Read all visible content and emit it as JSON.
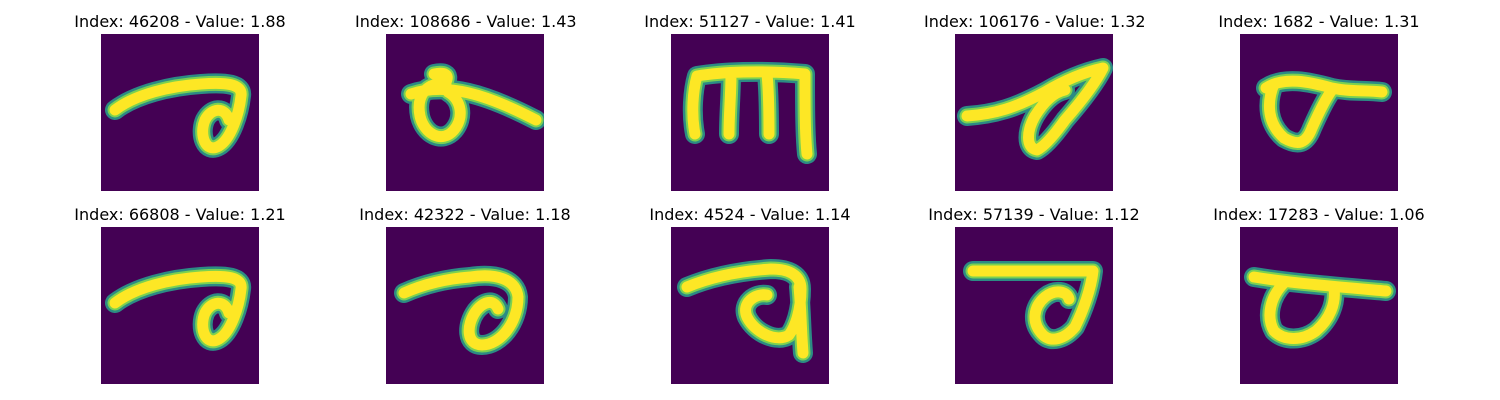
{
  "colors": {
    "background": "#440154",
    "stroke_outer": "#2a9a8a",
    "stroke_mid": "#7ad151",
    "stroke_core": "#fde725"
  },
  "chart_data": {
    "type": "image-grid",
    "panels": [
      {
        "title": "Index: 46208 - Value: 1.88",
        "index": 46208,
        "value": 1.88,
        "glyph": "curl-loop-right"
      },
      {
        "title": "Index: 108686 - Value: 1.43",
        "index": 108686,
        "value": 1.43,
        "glyph": "small-loop-stroke"
      },
      {
        "title": "Index: 51127 - Value: 1.41",
        "index": 51127,
        "value": 1.41,
        "glyph": "m-shape"
      },
      {
        "title": "Index: 106176 - Value: 1.32",
        "index": 106176,
        "value": 1.32,
        "glyph": "leaf-loop"
      },
      {
        "title": "Index: 1682 - Value: 1.31",
        "index": 1682,
        "value": 1.31,
        "glyph": "cup-loop"
      },
      {
        "title": "Index: 66808 - Value: 1.21",
        "index": 66808,
        "value": 1.21,
        "glyph": "curl-loop-right"
      },
      {
        "title": "Index: 42322 - Value: 1.18",
        "index": 42322,
        "value": 1.18,
        "glyph": "bold-loop"
      },
      {
        "title": "Index: 4524 - Value: 1.14",
        "index": 4524,
        "value": 1.14,
        "glyph": "a-curl"
      },
      {
        "title": "Index: 57139 - Value: 1.12",
        "index": 57139,
        "value": 1.12,
        "glyph": "flag-loop"
      },
      {
        "title": "Index: 17283 - Value: 1.06",
        "index": 17283,
        "value": 1.06,
        "glyph": "bar-loop"
      }
    ]
  }
}
